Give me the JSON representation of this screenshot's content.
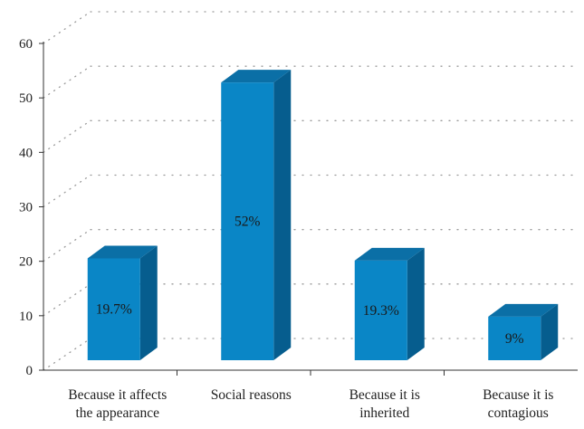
{
  "chart_data": {
    "type": "bar",
    "style": "3d",
    "categories": [
      [
        "Because it affects",
        "the appearance"
      ],
      [
        "Social reasons"
      ],
      [
        "Because it is",
        "inherited"
      ],
      [
        "Because it is",
        "contagious"
      ]
    ],
    "values": [
      19.7,
      52,
      19.3,
      9
    ],
    "data_labels": [
      "19.7%",
      "52%",
      "19.3%",
      "9%"
    ],
    "yticks": [
      "0",
      "10",
      "20",
      "30",
      "40",
      "50",
      "60"
    ],
    "ylim": [
      0,
      60
    ],
    "grid": true,
    "colors": {
      "front": "#0a86c6",
      "side": "#065d8e",
      "top": "#0b6fa6",
      "grid": "#9a9a9a"
    }
  }
}
